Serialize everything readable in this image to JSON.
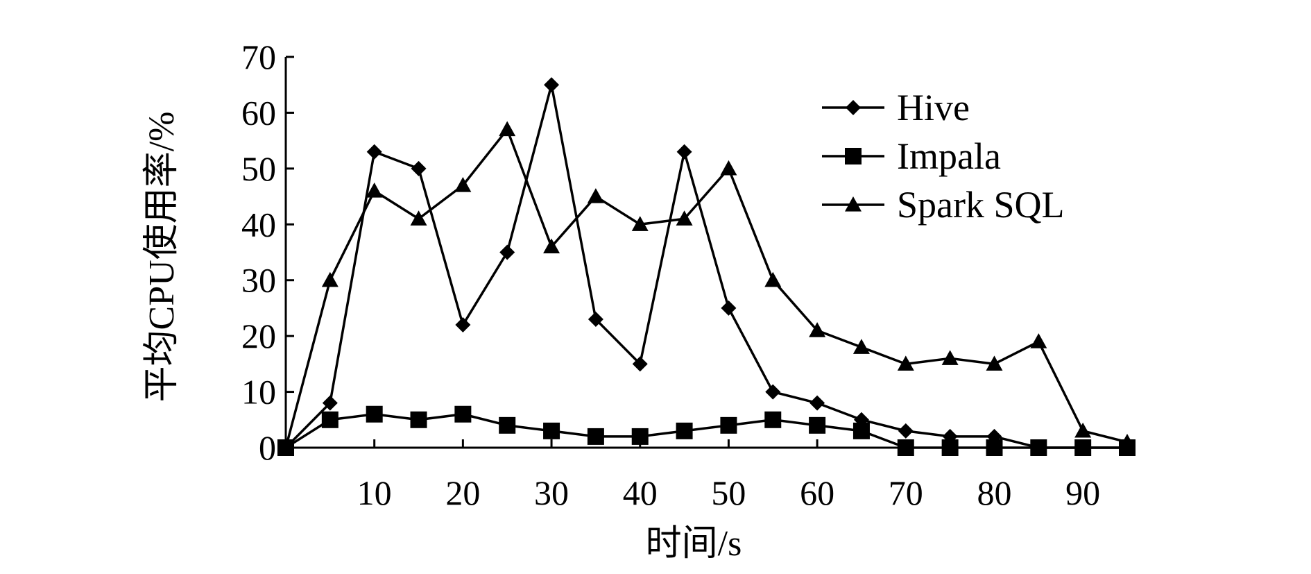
{
  "chart_data": {
    "type": "line",
    "title": "",
    "xlabel": "时间/s",
    "ylabel": "平均CPU使用率/%",
    "xlim": [
      0,
      95
    ],
    "ylim": [
      0,
      70
    ],
    "x_ticks": [
      10,
      20,
      30,
      40,
      50,
      60,
      70,
      80,
      90
    ],
    "y_ticks": [
      0,
      10,
      20,
      30,
      40,
      50,
      60,
      70
    ],
    "x": [
      0,
      5,
      10,
      15,
      20,
      25,
      30,
      35,
      40,
      45,
      50,
      55,
      60,
      65,
      70,
      75,
      80,
      85,
      90,
      95
    ],
    "series": [
      {
        "name": "Hive",
        "marker": "diamond",
        "values": [
          0,
          8,
          53,
          50,
          22,
          35,
          65,
          23,
          15,
          53,
          25,
          10,
          8,
          5,
          3,
          2,
          2,
          0,
          0,
          0
        ]
      },
      {
        "name": "Impala",
        "marker": "square",
        "values": [
          0,
          5,
          6,
          5,
          6,
          4,
          3,
          2,
          2,
          3,
          4,
          5,
          4,
          3,
          0,
          0,
          0,
          0,
          0,
          0
        ]
      },
      {
        "name": "Spark SQL",
        "marker": "triangle",
        "values": [
          0,
          30,
          46,
          41,
          47,
          57,
          36,
          45,
          40,
          41,
          50,
          30,
          21,
          18,
          15,
          16,
          15,
          19,
          3,
          1
        ]
      }
    ],
    "legend_position": "top-right",
    "grid": false
  }
}
